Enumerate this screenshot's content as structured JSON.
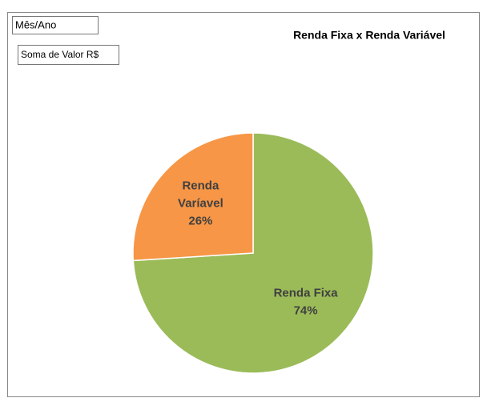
{
  "chart_data": {
    "type": "pie",
    "title": "Renda Fixa x Renda Variável",
    "field_buttons": [
      "Mês/Ano",
      "Soma de Valor R$"
    ],
    "categories": [
      "Renda Fixa",
      "Renda Varíavel"
    ],
    "values": [
      74,
      26
    ],
    "value_labels": [
      "74%",
      "26%"
    ],
    "colors": [
      "#9bbb59",
      "#f79646"
    ]
  }
}
